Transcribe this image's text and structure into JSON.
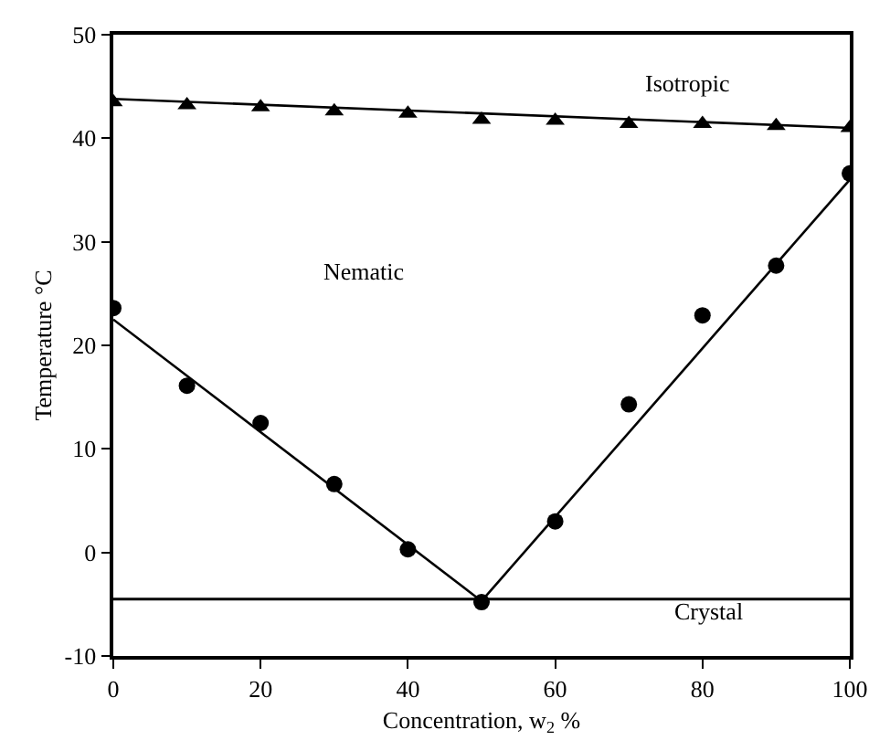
{
  "chart_data": {
    "type": "scatter",
    "xlabel": "Concentration, w$_{2}$ %",
    "ylabel": "Temperature °C",
    "xlim": [
      0,
      100
    ],
    "xticks": [
      0,
      20,
      40,
      60,
      80,
      100
    ],
    "ylim": [
      -10,
      50
    ],
    "yticks": [
      -10,
      0,
      10,
      20,
      30,
      40,
      50
    ],
    "grid": false,
    "x": [
      0,
      10,
      20,
      30,
      40,
      50,
      60,
      70,
      80,
      90,
      100
    ],
    "series": [
      {
        "marker": "triangle",
        "color": "#000000",
        "values": [
          43.5,
          43.2,
          43.0,
          42.6,
          42.4,
          41.8,
          41.7,
          41.4,
          41.4,
          41.2,
          41.0
        ]
      },
      {
        "type": "line",
        "marker": "none",
        "color": "#000000",
        "x": [
          0,
          100
        ],
        "values": [
          43.8,
          41.0
        ]
      },
      {
        "marker": "circle",
        "color": "#000000",
        "values": [
          23.6,
          16.1,
          12.5,
          6.6,
          0.3,
          -4.8,
          3.0,
          14.3,
          22.9,
          27.7,
          36.6
        ]
      },
      {
        "type": "line",
        "marker": "none",
        "color": "#000000",
        "x": [
          0,
          50
        ],
        "values": [
          22.5,
          -4.7
        ]
      },
      {
        "type": "line",
        "marker": "none",
        "color": "#000000",
        "x": [
          50,
          100
        ],
        "values": [
          -4.7,
          36.0
        ]
      }
    ],
    "ref_lines": [
      {
        "axis": "y",
        "value": -4.5,
        "color": "#000000"
      }
    ],
    "annotations": [
      "Isotropic",
      "Nematic",
      "Crystal"
    ]
  }
}
